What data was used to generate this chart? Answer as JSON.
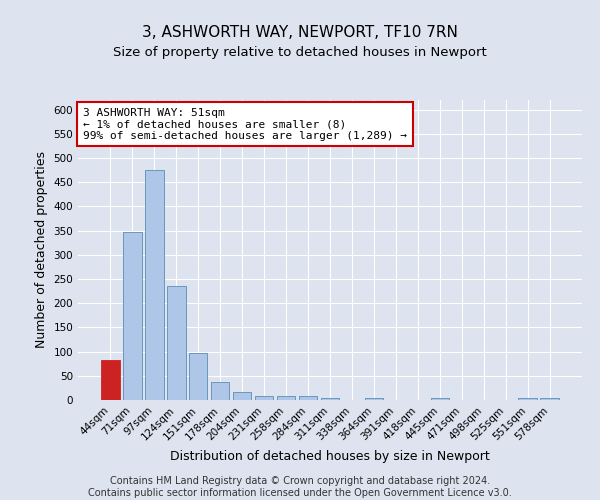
{
  "title": "3, ASHWORTH WAY, NEWPORT, TF10 7RN",
  "subtitle": "Size of property relative to detached houses in Newport",
  "xlabel": "Distribution of detached houses by size in Newport",
  "ylabel": "Number of detached properties",
  "categories": [
    "44sqm",
    "71sqm",
    "97sqm",
    "124sqm",
    "151sqm",
    "178sqm",
    "204sqm",
    "231sqm",
    "258sqm",
    "284sqm",
    "311sqm",
    "338sqm",
    "364sqm",
    "391sqm",
    "418sqm",
    "445sqm",
    "471sqm",
    "498sqm",
    "525sqm",
    "551sqm",
    "578sqm"
  ],
  "values": [
    83,
    348,
    475,
    235,
    97,
    37,
    17,
    8,
    8,
    8,
    5,
    0,
    5,
    0,
    0,
    5,
    0,
    0,
    0,
    5,
    5
  ],
  "bar_color": "#aec6e8",
  "bar_edge_color": "#5b8db8",
  "highlight_bar_color": "#cc2222",
  "highlight_edge_color": "#cc2222",
  "highlight_index": 0,
  "ylim": [
    0,
    620
  ],
  "yticks": [
    0,
    50,
    100,
    150,
    200,
    250,
    300,
    350,
    400,
    450,
    500,
    550,
    600
  ],
  "annotation_text": "3 ASHWORTH WAY: 51sqm\n← 1% of detached houses are smaller (8)\n99% of semi-detached houses are larger (1,289) →",
  "annotation_box_color": "#ffffff",
  "annotation_box_edge": "#cc0000",
  "footer_text": "Contains HM Land Registry data © Crown copyright and database right 2024.\nContains public sector information licensed under the Open Government Licence v3.0.",
  "background_color": "#dde4ef",
  "plot_bg_color": "#dde4ef",
  "grid_color": "#ffffff",
  "title_fontsize": 11,
  "subtitle_fontsize": 9.5,
  "ylabel_fontsize": 9,
  "xlabel_fontsize": 9,
  "tick_label_fontsize": 7.5,
  "annotation_fontsize": 8,
  "footer_fontsize": 7
}
